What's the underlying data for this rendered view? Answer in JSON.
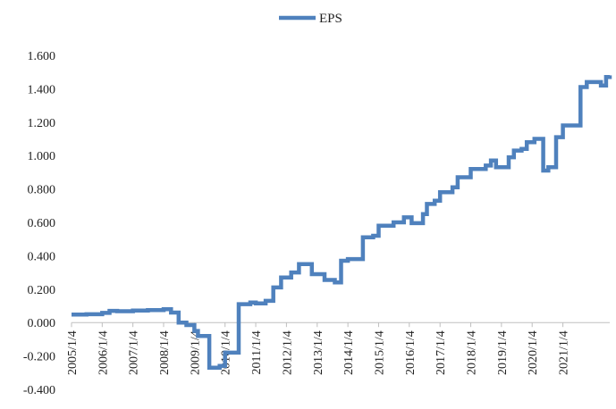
{
  "colors": {
    "series": "#4F81BD",
    "axis": "#BFBFBF",
    "text": "#222222"
  },
  "chart_data": {
    "type": "line",
    "title": "",
    "xlabel": "",
    "ylabel": "",
    "legend": {
      "position": "top-center",
      "entries": [
        "EPS"
      ]
    },
    "grid": false,
    "ylim": [
      -0.4,
      1.6
    ],
    "yticks": [
      "1.600",
      "1.400",
      "1.200",
      "1.000",
      "0.800",
      "0.600",
      "0.400",
      "0.200",
      "0.000",
      "-0.200",
      "-0.400"
    ],
    "xlim": [
      "2005/1/4",
      "2022/7/15"
    ],
    "xticks": [
      "2005/1/4",
      "2006/1/4",
      "2007/1/4",
      "2008/1/4",
      "2009/1/4",
      "2010/1/4",
      "2011/1/4",
      "2012/1/4",
      "2013/1/4",
      "2014/1/4",
      "2015/1/4",
      "2016/1/4",
      "2017/1/4",
      "2018/1/4",
      "2019/1/4",
      "2020/1/4",
      "2021/1/4"
    ],
    "step": true,
    "series": [
      {
        "name": "EPS",
        "points": [
          [
            "2005/1/4",
            0.048
          ],
          [
            "2005/7/1",
            0.05
          ],
          [
            "2006/1/4",
            0.058
          ],
          [
            "2006/4/1",
            0.07
          ],
          [
            "2006/7/1",
            0.068
          ],
          [
            "2007/1/4",
            0.072
          ],
          [
            "2007/7/1",
            0.075
          ],
          [
            "2008/1/4",
            0.08
          ],
          [
            "2008/4/1",
            0.06
          ],
          [
            "2008/7/1",
            0.0
          ],
          [
            "2008/10/1",
            -0.015
          ],
          [
            "2009/1/4",
            -0.05
          ],
          [
            "2009/2/15",
            -0.08
          ],
          [
            "2009/7/1",
            -0.27
          ],
          [
            "2009/11/1",
            -0.26
          ],
          [
            "2010/1/4",
            -0.18
          ],
          [
            "2010/6/15",
            0.11
          ],
          [
            "2010/11/1",
            0.12
          ],
          [
            "2011/1/4",
            0.115
          ],
          [
            "2011/5/1",
            0.13
          ],
          [
            "2011/8/1",
            0.21
          ],
          [
            "2011/11/1",
            0.27
          ],
          [
            "2012/3/1",
            0.3
          ],
          [
            "2012/6/1",
            0.35
          ],
          [
            "2012/11/1",
            0.29
          ],
          [
            "2013/4/1",
            0.255
          ],
          [
            "2013/8/1",
            0.24
          ],
          [
            "2013/10/15",
            0.37
          ],
          [
            "2014/1/4",
            0.38
          ],
          [
            "2014/7/1",
            0.51
          ],
          [
            "2014/11/1",
            0.52
          ],
          [
            "2015/1/4",
            0.58
          ],
          [
            "2015/7/1",
            0.6
          ],
          [
            "2015/11/1",
            0.63
          ],
          [
            "2016/2/1",
            0.595
          ],
          [
            "2016/6/15",
            0.65
          ],
          [
            "2016/8/1",
            0.71
          ],
          [
            "2016/11/1",
            0.73
          ],
          [
            "2017/1/4",
            0.78
          ],
          [
            "2017/6/1",
            0.81
          ],
          [
            "2017/8/1",
            0.87
          ],
          [
            "2018/1/4",
            0.92
          ],
          [
            "2018/7/1",
            0.94
          ],
          [
            "2018/9/1",
            0.97
          ],
          [
            "2018/11/1",
            0.93
          ],
          [
            "2019/4/1",
            0.99
          ],
          [
            "2019/6/1",
            1.03
          ],
          [
            "2019/9/1",
            1.04
          ],
          [
            "2019/11/1",
            1.08
          ],
          [
            "2020/2/1",
            1.1
          ],
          [
            "2020/5/15",
            0.91
          ],
          [
            "2020/7/15",
            0.93
          ],
          [
            "2020/10/15",
            1.11
          ],
          [
            "2021/1/4",
            1.18
          ],
          [
            "2021/8/1",
            1.41
          ],
          [
            "2021/10/15",
            1.44
          ],
          [
            "2022/4/1",
            1.42
          ],
          [
            "2022/6/1",
            1.47
          ],
          [
            "2022/7/15",
            1.48
          ]
        ]
      }
    ]
  }
}
